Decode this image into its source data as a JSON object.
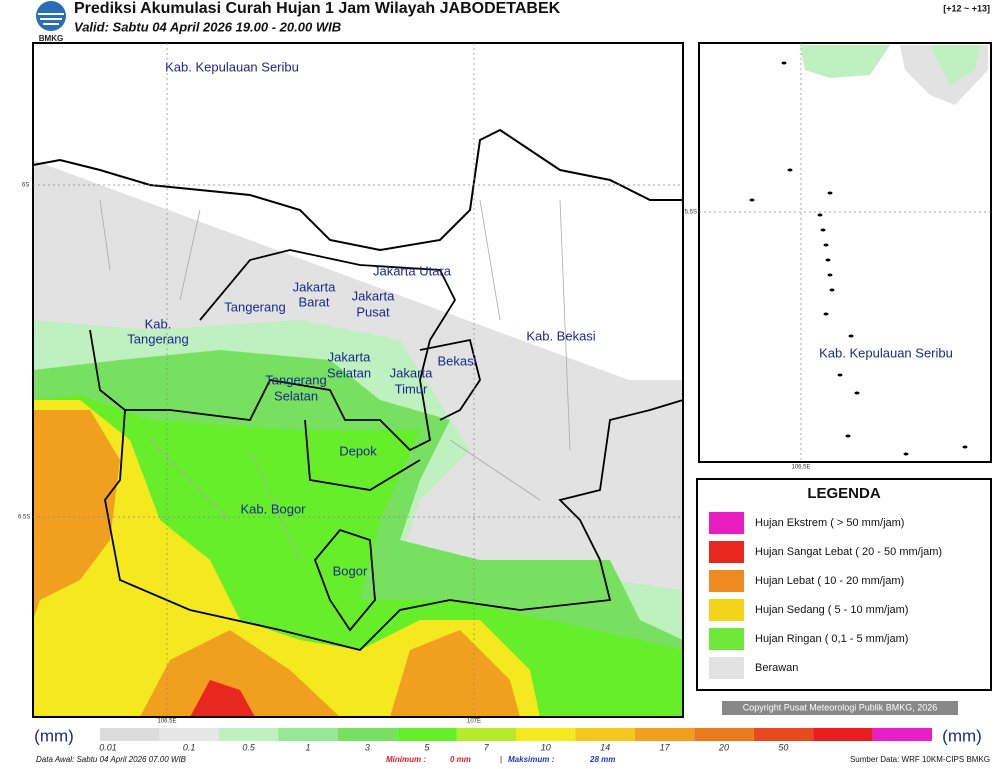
{
  "header": {
    "logo": "BMKG",
    "title": "Prediksi Akumulasi Curah Hujan 1 Jam Wilayah JABODETABEK",
    "subtitle": "Valid: Sabtu 04 April 2026 19.00 - 20.00 WIB",
    "lead": "[+12 ~ +13]"
  },
  "map": {
    "labels": [
      "Kab. Kepulauan Seribu",
      "Jakarta Utara",
      "Jakarta",
      "Barat",
      "Jakarta",
      "Pusat",
      "Tangerang",
      "Kab.",
      "Tangerang",
      "Jakarta",
      "Selatan",
      "Jakarta",
      "Timur",
      "Bekasi",
      "Kab. Bekasi",
      "Tangerang",
      "Selatan",
      "Depok",
      "Kab. Bogor",
      "Bogor"
    ],
    "lat_ticks": [
      "6S",
      "6.5S"
    ],
    "lon_ticks": [
      "106.5E",
      "107E"
    ]
  },
  "inset": {
    "label": "Kab. Kepulauan Seribu",
    "lat_tick": "5.5S",
    "lon_tick": "106.5E"
  },
  "legend": {
    "title": "LEGENDA",
    "items": [
      {
        "label": "Hujan Ekstrem ( > 50 mm/jam)",
        "color": "#e81ec0"
      },
      {
        "label": "Hujan Sangat Lebat ( 20 - 50 mm/jam)",
        "color": "#e8281e"
      },
      {
        "label": "Hujan Lebat ( 10 - 20 mm/jam)",
        "color": "#ee8a1e"
      },
      {
        "label": "Hujan Sedang ( 5 - 10 mm/jam)",
        "color": "#f2d51a"
      },
      {
        "label": "Hujan Ringan ( 0,1 - 5 mm/jam)",
        "color": "#6ee83a"
      },
      {
        "label": "Berawan",
        "color": "#e2e2e2"
      }
    ]
  },
  "copyright": "Copyright Pusat Meteorologi Publik BMKG, 2026",
  "colorbar": {
    "unit": "(mm)",
    "ticks": [
      0.01,
      0.1,
      0.5,
      1,
      3,
      5,
      7,
      10,
      14,
      17,
      20,
      50
    ],
    "colors": [
      "#dcdcdc",
      "#e6e6e6",
      "#bff0bf",
      "#96e896",
      "#78e060",
      "#66ee2a",
      "#b4ec2a",
      "#f4e81e",
      "#f4c81e",
      "#f0a01e",
      "#ec7a1e",
      "#e64a1e",
      "#e81e1e",
      "#e81ec8"
    ]
  },
  "footer": {
    "data_awal": "Data Awal: Sabtu 04 April 2026 07.00 WIB",
    "minimum_label": "Minimum :",
    "minimum_value": "0 mm",
    "separator": "|",
    "maximum_label": "Maksimum :",
    "maximum_value": "28 mm",
    "source": "Sumber Data: WRF 10KM-CIPS BMKG"
  }
}
